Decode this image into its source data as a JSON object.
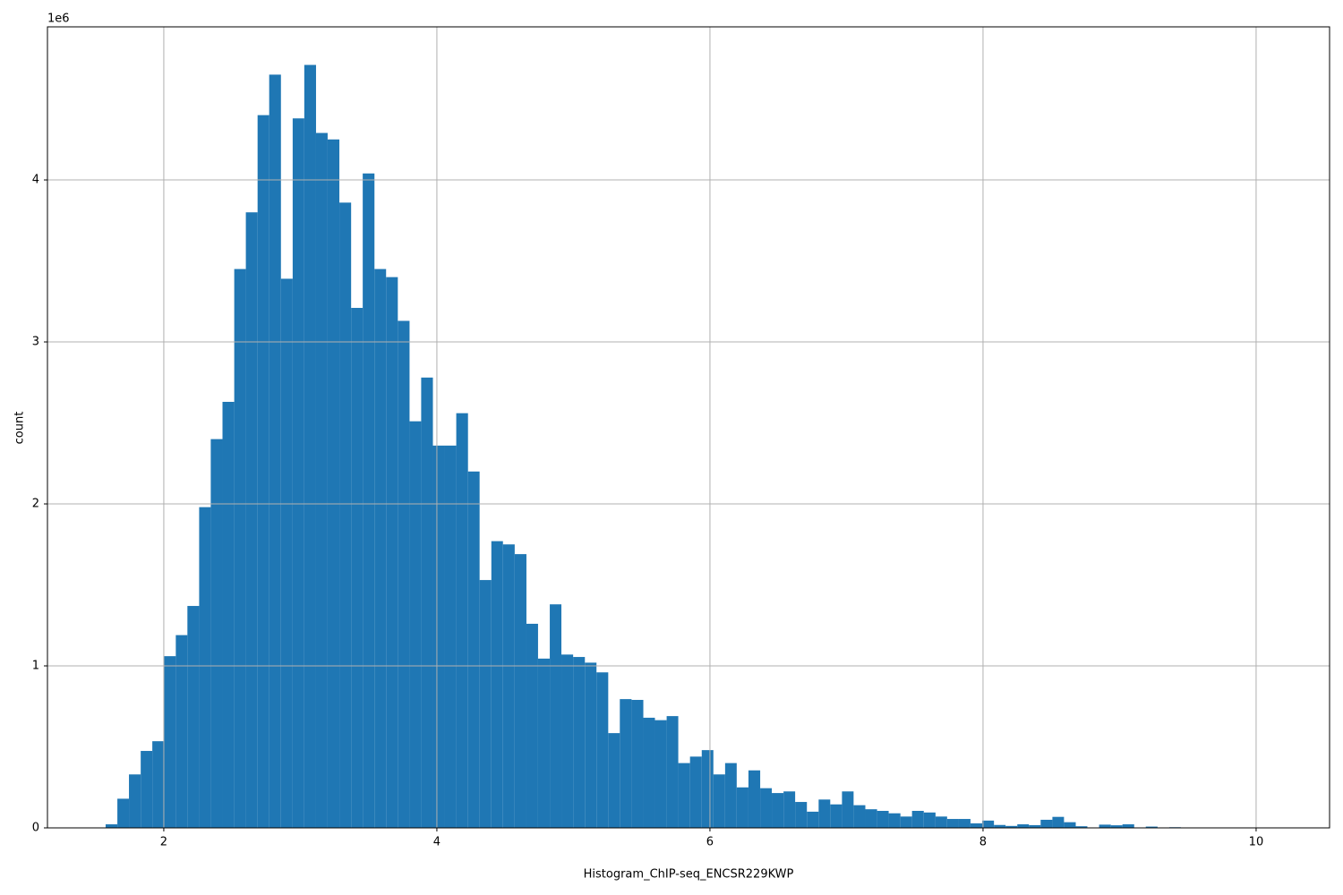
{
  "chart_data": {
    "type": "histogram",
    "xlabel": "Histogram_ChIP-seq_ENCSR229KWP",
    "ylabel": "count",
    "y_offset_label": "1e6",
    "color": "#1f77b4",
    "grid": true,
    "bins": [
      1.574,
      1.66,
      1.745,
      1.831,
      1.916,
      2.002,
      2.088,
      2.173,
      2.259,
      2.344,
      2.43,
      2.516,
      2.601,
      2.687,
      2.772,
      2.858,
      2.944,
      3.029,
      3.115,
      3.2,
      3.286,
      3.372,
      3.457,
      3.543,
      3.628,
      3.714,
      3.8,
      3.885,
      3.971,
      4.056,
      4.142,
      4.228,
      4.313,
      4.399,
      4.484,
      4.57,
      4.656,
      4.741,
      4.827,
      4.912,
      4.998,
      5.084,
      5.169,
      5.255,
      5.34,
      5.426,
      5.512,
      5.597,
      5.683,
      5.768,
      5.854,
      5.94,
      6.025,
      6.111,
      6.196,
      6.282,
      6.368,
      6.453,
      6.539,
      6.624,
      6.71,
      6.796,
      6.881,
      6.967,
      7.052,
      7.138,
      7.224,
      7.309,
      7.395,
      7.48,
      7.566,
      7.652,
      7.737,
      7.823,
      7.908,
      7.994,
      8.08,
      8.165,
      8.251,
      8.336,
      8.422,
      8.508,
      8.593,
      8.679,
      8.764,
      8.85,
      8.936,
      9.021,
      9.107,
      9.192,
      9.278,
      9.364,
      9.449,
      9.535,
      9.62,
      9.706,
      9.792,
      9.877,
      9.963,
      10.048,
      10.134
    ],
    "counts": [
      22000,
      180000,
      330000,
      475000,
      535000,
      1060000,
      1190000,
      1370000,
      1980000,
      2400000,
      2630000,
      3450000,
      3800000,
      4400000,
      4650000,
      3390000,
      4380000,
      4710000,
      4290000,
      4250000,
      3860000,
      3210000,
      4040000,
      3450000,
      3400000,
      3130000,
      2510000,
      2780000,
      2360000,
      2360000,
      2560000,
      2200000,
      1530000,
      1770000,
      1750000,
      1690000,
      1260000,
      1045000,
      1380000,
      1070000,
      1055000,
      1020000,
      960000,
      585000,
      795000,
      790000,
      680000,
      665000,
      690000,
      400000,
      440000,
      480000,
      330000,
      400000,
      250000,
      355000,
      245000,
      215000,
      225000,
      160000,
      100000,
      175000,
      145000,
      225000,
      140000,
      115000,
      105000,
      90000,
      70000,
      105000,
      95000,
      70000,
      55000,
      55000,
      28000,
      45000,
      18000,
      12000,
      22000,
      17000,
      50000,
      68000,
      35000,
      10000,
      0,
      20000,
      16000,
      22000,
      0,
      8000,
      0,
      4000,
      0,
      0,
      0,
      0,
      0,
      0,
      0,
      0
    ],
    "xlim": [
      1.148,
      10.538
    ],
    "xticks": [
      2,
      4,
      6,
      8,
      10
    ],
    "ylim": [
      0,
      4945000
    ],
    "yticks": [
      0,
      {
        "value": 1000000,
        "label": "1"
      },
      {
        "value": 2000000,
        "label": "2"
      },
      {
        "value": 3000000,
        "label": "3"
      },
      {
        "value": 4000000,
        "label": "4"
      }
    ]
  }
}
